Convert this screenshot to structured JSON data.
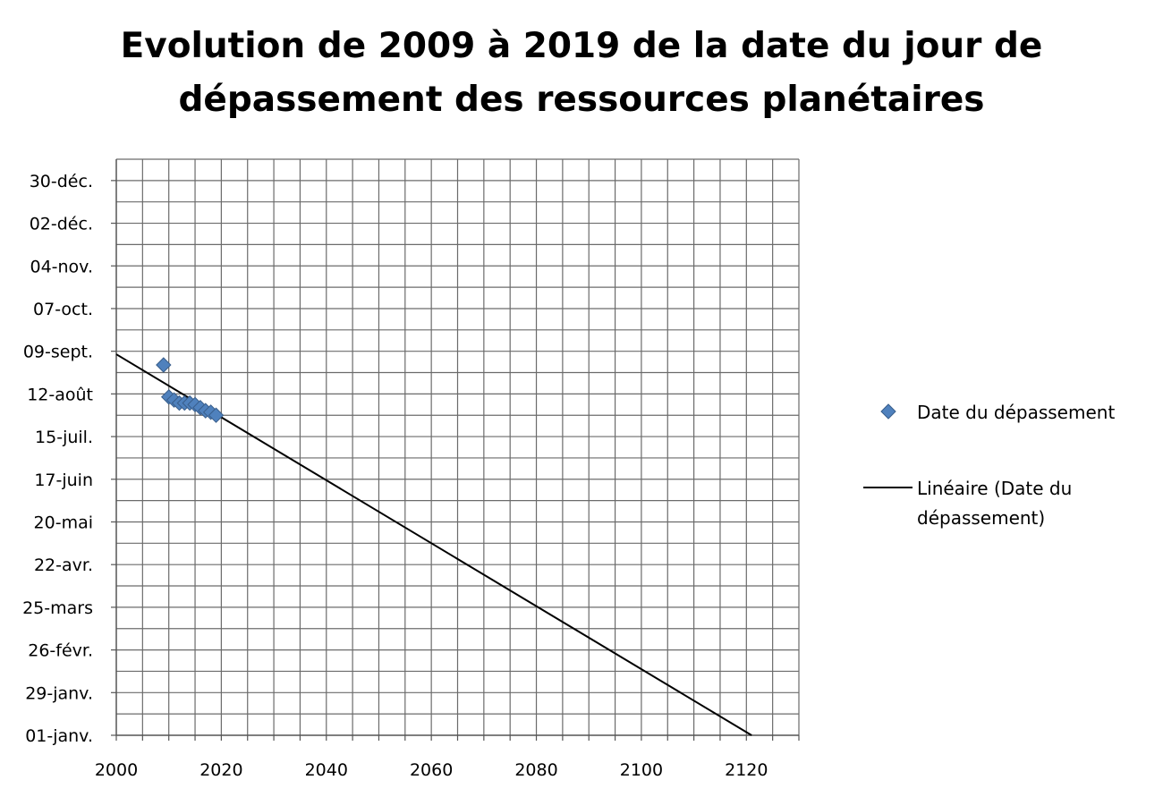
{
  "chart_data": {
    "type": "scatter",
    "title_lines": [
      "Evolution de 2009 à 2019 de la date du jour de",
      "dépassement des ressources planétaires"
    ],
    "xlabel": "",
    "ylabel": "",
    "x_ticks": [
      2000,
      2020,
      2040,
      2060,
      2080,
      2100,
      2120
    ],
    "xlim": [
      2000,
      2130
    ],
    "x_minor_step": 5,
    "y_tick_labels": [
      "01-janv.",
      "29-janv.",
      "26-févr.",
      "25-mars",
      "22-avr.",
      "20-mai",
      "17-juin",
      "15-juil.",
      "12-août",
      "09-sept.",
      "07-oct.",
      "04-nov.",
      "02-déc.",
      "30-déc."
    ],
    "y_tick_values": [
      "2000-01-01",
      "2000-01-29",
      "2000-02-26",
      "2000-03-25",
      "2000-04-22",
      "2000-05-20",
      "2000-06-17",
      "2000-07-15",
      "2000-08-12",
      "2000-09-09",
      "2000-10-07",
      "2000-11-04",
      "2000-12-02",
      "2000-12-30"
    ],
    "ylim": [
      "2000-01-01",
      "2001-01-13"
    ],
    "grid": true,
    "legend_position": "right",
    "series": [
      {
        "name": "Date du dépassement",
        "marker": "diamond",
        "color": "#4F81BD",
        "points": [
          {
            "x": 2009,
            "y": "2000-08-31"
          },
          {
            "x": 2010,
            "y": "2000-08-10"
          },
          {
            "x": 2011,
            "y": "2000-08-08"
          },
          {
            "x": 2012,
            "y": "2000-08-06"
          },
          {
            "x": 2013,
            "y": "2000-08-06"
          },
          {
            "x": 2014,
            "y": "2000-08-06"
          },
          {
            "x": 2015,
            "y": "2000-08-05"
          },
          {
            "x": 2016,
            "y": "2000-08-03"
          },
          {
            "x": 2017,
            "y": "2000-08-01"
          },
          {
            "x": 2018,
            "y": "2000-07-31"
          },
          {
            "x": 2019,
            "y": "2000-07-29"
          }
        ]
      }
    ],
    "trendline": {
      "name": "Linéaire (Date du dépassement)",
      "name_lines": [
        "Linéaire (Date du",
        "dépassement)"
      ],
      "color": "#000000",
      "from": {
        "x": 2000,
        "y": "2000-09-07"
      },
      "to": {
        "x": 2121,
        "y": "2000-01-01"
      }
    }
  }
}
